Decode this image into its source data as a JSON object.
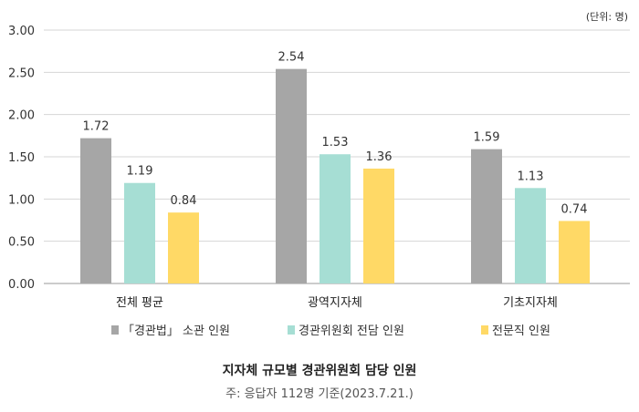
{
  "chart_data": {
    "type": "bar",
    "unit_label": "(단위: 명)",
    "categories": [
      "전체 평균",
      "광역지자체",
      "기초지자체"
    ],
    "series": [
      {
        "name": "「경관법」 소관 인원",
        "color": "#a6a6a6",
        "values": [
          1.72,
          2.54,
          1.59
        ]
      },
      {
        "name": "경관위원회 전담 인원",
        "color": "#a6ded4",
        "values": [
          1.19,
          1.53,
          1.13
        ]
      },
      {
        "name": "전문직 인원",
        "color": "#ffd966",
        "values": [
          0.84,
          1.36,
          0.74
        ]
      }
    ],
    "value_labels": [
      [
        "1.72",
        "2.54",
        "1.59"
      ],
      [
        "1.19",
        "1.53",
        "1.13"
      ],
      [
        "0.84",
        "1.36",
        "0.74"
      ]
    ],
    "yticks": [
      "0.00",
      "0.50",
      "1.00",
      "1.50",
      "2.00",
      "2.50",
      "3.00"
    ],
    "ylim": [
      0,
      3
    ],
    "grid": true,
    "legend_position": "bottom",
    "title": "지자체 규모별 경관위원회 담당 인원",
    "note": "주: 응답자 112명 기준(2023.7.21.)"
  }
}
